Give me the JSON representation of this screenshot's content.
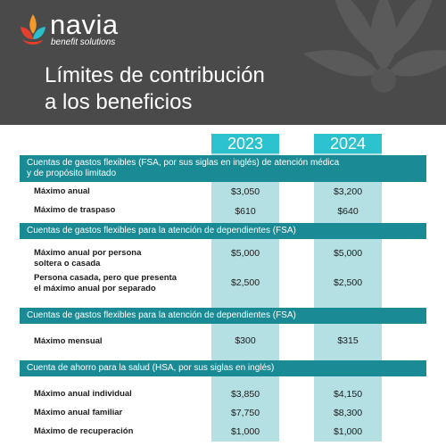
{
  "logo": {
    "brand": "navia",
    "tagline": "benefit solutions",
    "colors": {
      "red": "#e2402c",
      "orange": "#f39a2b",
      "teal": "#2bbfcc"
    }
  },
  "header": {
    "title_line1": "Límites de contribución",
    "title_line2": "a los beneficios",
    "bg_color": "#4a4a4a"
  },
  "years": [
    "2023",
    "2024"
  ],
  "sections": [
    {
      "title_line1": "Cuentas de gastos flexibles (FSA, por sus siglas en inglés) de atención médica",
      "title_line2": "y de propósito limitado",
      "rows": [
        {
          "label_line1": "Máximo anual",
          "label_line2": "",
          "v2023": "$3,050",
          "v2024": "$3,200"
        },
        {
          "label_line1": "Máximo de traspaso",
          "label_line2": "",
          "v2023": "$610",
          "v2024": "$640"
        }
      ]
    },
    {
      "title_line1": "Cuentas de gastos flexibles para la atención de dependientes (FSA)",
      "title_line2": "",
      "rows": [
        {
          "label_line1": "Máximo anual por persona",
          "label_line2": "soltera o casada",
          "v2023": "$5,000",
          "v2024": "$5,000"
        },
        {
          "label_line1": "Persona casada, pero que presenta",
          "label_line2": "el máximo anual por separado",
          "v2023": "$2,500",
          "v2024": "$2,500"
        }
      ]
    },
    {
      "title_line1": "Cuentas de gastos flexibles para la atención de dependientes (FSA)",
      "title_line2": "",
      "rows": [
        {
          "label_line1": "Máximo mensual",
          "label_line2": "",
          "v2023": "$300",
          "v2024": "$315"
        }
      ]
    },
    {
      "title_line1": "Cuenta de ahorro para la salud (HSA, por sus siglas en inglés)",
      "title_line2": "",
      "rows": [
        {
          "label_line1": "Máximo anual individual",
          "label_line2": "",
          "v2023": "$3,850",
          "v2024": "$4,150"
        },
        {
          "label_line1": "Máximo anual familiar",
          "label_line2": "",
          "v2023": "$7,750",
          "v2024": "$8,300"
        },
        {
          "label_line1": "Máximo de recuperación",
          "label_line2": "",
          "v2023": "$1,000",
          "v2024": "$1,000"
        }
      ]
    }
  ],
  "colors": {
    "section_bar": "#1a8b94",
    "year_header": "#2bc1cd",
    "column_bg": "#b4dfe3"
  }
}
